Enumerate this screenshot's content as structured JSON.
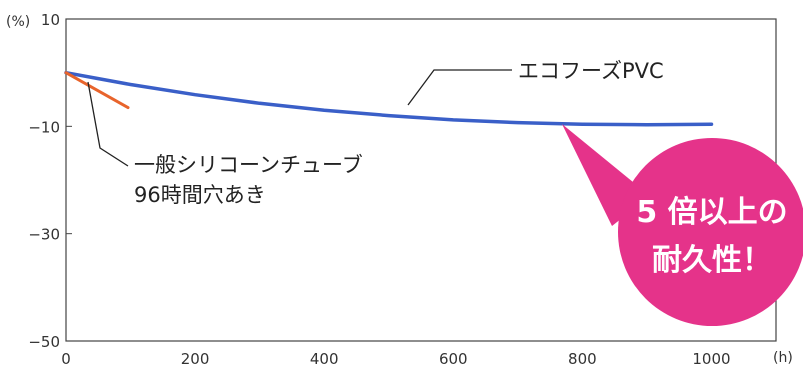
{
  "chart_data": {
    "type": "line",
    "x": [
      0,
      50,
      100,
      200,
      300,
      400,
      500,
      600,
      700,
      800,
      900,
      1000
    ],
    "series": [
      {
        "name": "エコフーズPVC",
        "color": "#3a5fc8",
        "x": [
          0,
          50,
          100,
          200,
          300,
          400,
          500,
          600,
          700,
          800,
          900,
          1000
        ],
        "y": [
          0,
          -1.1,
          -2.2,
          -4.1,
          -5.7,
          -7.0,
          -8.0,
          -8.8,
          -9.3,
          -9.6,
          -9.7,
          -9.6
        ]
      },
      {
        "name": "一般シリコーンチューブ 96時間穴あき",
        "color": "#e8642c",
        "x": [
          0,
          96
        ],
        "y": [
          0,
          -6.5
        ]
      }
    ],
    "ylim": [
      -50,
      10
    ],
    "xlim": [
      0,
      1100
    ],
    "yticks": [
      10,
      -10,
      -30,
      -50
    ],
    "xticks": [
      0,
      200,
      400,
      600,
      800,
      1000
    ],
    "y_tick_labels": [
      "10",
      "−10",
      "−30",
      "−50"
    ],
    "x_tick_labels": [
      "0",
      "200",
      "400",
      "600",
      "800",
      "1000"
    ],
    "y_unit": "(%)",
    "x_unit": "(h)",
    "grid": false,
    "annotations": {
      "pvc_label": "エコフーズPVC",
      "silicone_line1": "一般シリコーンチューブ",
      "silicone_line2": "96時間穴あき",
      "callout_line1": "5 倍以上の",
      "callout_line2": "耐久性！"
    },
    "callout_color": "#e5338a"
  }
}
